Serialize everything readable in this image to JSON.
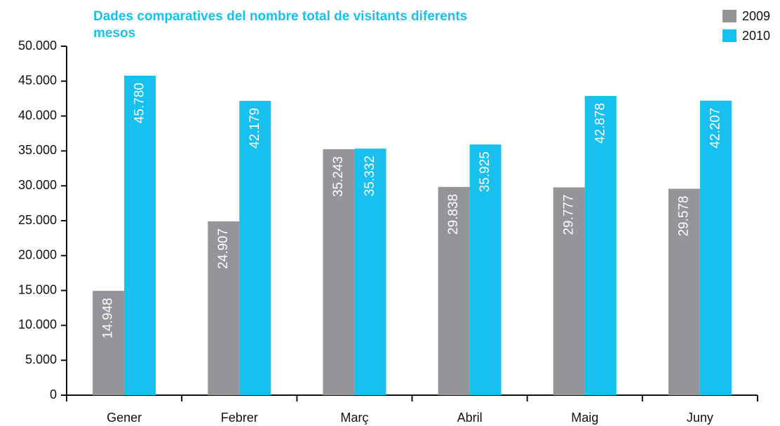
{
  "chart_data": {
    "type": "bar",
    "title": "Dades comparatives del nombre total de visitants diferents mesos",
    "categories": [
      "Gener",
      "Febrer",
      "Març",
      "Abril",
      "Maig",
      "Juny"
    ],
    "series": [
      {
        "name": "2009",
        "color": "#939598",
        "values": [
          14948,
          24907,
          35243,
          29838,
          29777,
          29578
        ],
        "value_labels": [
          "14.948",
          "24.907",
          "35.243",
          "29.838",
          "29.777",
          "29.578"
        ]
      },
      {
        "name": "2010",
        "color": "#17c0ee",
        "values": [
          45780,
          42179,
          35332,
          35925,
          42878,
          42207
        ],
        "value_labels": [
          "45.780",
          "42.179",
          "35.332",
          "35.925",
          "42.878",
          "42.207"
        ]
      }
    ],
    "ylim": [
      0,
      50000
    ],
    "yticks": [
      0,
      {
        "value": 5000,
        "label": "5.000"
      },
      {
        "value": 10000,
        "label": "10.000"
      },
      {
        "value": 15000,
        "label": "15.000"
      },
      {
        "value": 20000,
        "label": "20.000"
      },
      {
        "value": 25000,
        "label": "25.000"
      },
      {
        "value": 30000,
        "label": "30.000"
      },
      {
        "value": 35000,
        "label": "35.000"
      },
      {
        "value": 40000,
        "label": "40.000"
      },
      {
        "value": 45000,
        "label": "45.000"
      },
      {
        "value": 50000,
        "label": "50.000"
      }
    ],
    "legend": "top-right"
  }
}
